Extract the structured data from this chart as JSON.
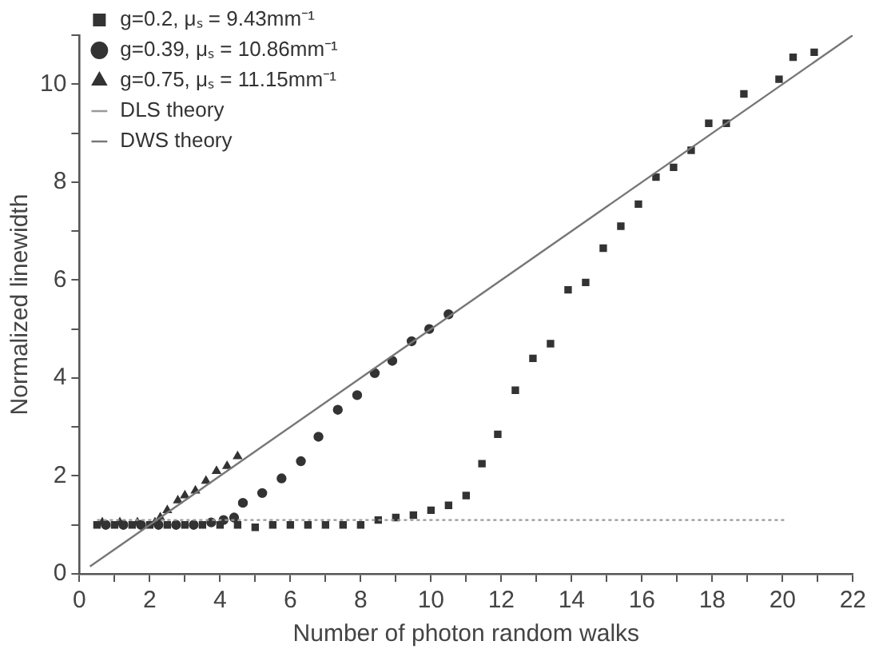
{
  "chart_data": {
    "type": "scatter",
    "xlabel": "Number of photon random walks",
    "ylabel": "Normalized linewidth",
    "xlim": [
      0,
      22
    ],
    "ylim": [
      0,
      11
    ],
    "xticks": [
      0,
      {
        "value": 1,
        "label": null
      },
      2,
      {
        "value": 3,
        "label": null
      },
      4,
      {
        "value": 5,
        "label": null
      },
      6,
      {
        "value": 7,
        "label": null
      },
      8,
      {
        "value": 9,
        "label": null
      },
      10,
      {
        "value": 11,
        "label": null
      },
      12,
      {
        "value": 13,
        "label": null
      },
      14,
      {
        "value": 15,
        "label": null
      },
      16,
      {
        "value": 17,
        "label": null
      },
      18,
      {
        "value": 19,
        "label": null
      },
      20,
      {
        "value": 21,
        "label": null
      },
      22
    ],
    "yticks": [
      0,
      {
        "value": 1,
        "label": null
      },
      2,
      {
        "value": 3,
        "label": null
      },
      4,
      {
        "value": 5,
        "label": null
      },
      6,
      {
        "value": 7,
        "label": null
      },
      8,
      {
        "value": 9,
        "label": null
      },
      10,
      {
        "value": 11,
        "label": null
      }
    ],
    "grid": false,
    "legend": "top left",
    "series": [
      {
        "name": "g=0.2, μₛ = 9.43mm⁻¹",
        "type": "scatter",
        "marker": "square",
        "color": "#333333",
        "x": [
          0.5,
          1,
          1.5,
          2,
          2.5,
          3,
          3.5,
          4,
          4.5,
          5,
          5.5,
          6,
          6.5,
          7,
          7.5,
          8,
          8.5,
          9,
          9.5,
          10,
          10.5,
          11,
          11.45,
          11.9,
          12.4,
          12.9,
          13.4,
          13.9,
          14.4,
          14.9,
          15.4,
          15.9,
          16.4,
          16.9,
          17.4,
          17.9,
          18.4,
          18.9,
          19.9,
          20.3,
          20.9
        ],
        "values": [
          1.0,
          1.0,
          1.0,
          1.0,
          1.0,
          1.0,
          1.0,
          1.0,
          1.0,
          0.95,
          1.0,
          1.0,
          1.0,
          1.0,
          1.0,
          1.0,
          1.1,
          1.15,
          1.2,
          1.3,
          1.4,
          1.6,
          2.25,
          2.85,
          3.75,
          4.4,
          4.7,
          5.8,
          5.95,
          6.65,
          7.1,
          7.55,
          8.1,
          8.3,
          8.65,
          9.2,
          9.2,
          9.8,
          10.1,
          10.55,
          10.65
        ]
      },
      {
        "name": "g=0.39, μₛ = 10.86mm⁻¹",
        "type": "scatter",
        "marker": "circle",
        "color": "#333333",
        "x": [
          0.75,
          1.25,
          1.75,
          2.25,
          2.75,
          3.25,
          3.75,
          4.1,
          4.4,
          4.65,
          5.2,
          5.75,
          6.3,
          6.8,
          7.35,
          7.9,
          8.4,
          8.9,
          9.45,
          9.95,
          10.5
        ],
        "values": [
          1.0,
          1.0,
          1.0,
          1.0,
          1.0,
          1.0,
          1.05,
          1.1,
          1.15,
          1.45,
          1.65,
          1.95,
          2.3,
          2.8,
          3.35,
          3.65,
          4.1,
          4.35,
          4.75,
          5.0,
          5.3
        ]
      },
      {
        "name": "g=0.75, μₛ = 11.15mm⁻¹",
        "type": "scatter",
        "marker": "triangle",
        "color": "#333333",
        "x": [
          0.65,
          1.15,
          1.65,
          2.15,
          2.3,
          2.5,
          2.8,
          3.0,
          3.3,
          3.6,
          3.9,
          4.2,
          4.5
        ],
        "values": [
          1.05,
          1.05,
          1.05,
          1.05,
          1.15,
          1.3,
          1.5,
          1.6,
          1.7,
          1.9,
          2.1,
          2.2,
          2.4
        ]
      },
      {
        "name": "DLS theory",
        "type": "line",
        "marker": "none",
        "line_style": "dotted",
        "color": "#999999",
        "x": [
          0.5,
          20.1
        ],
        "values": [
          1.1,
          1.1
        ]
      },
      {
        "name": "DWS theory",
        "type": "line",
        "marker": "none",
        "line_style": "solid",
        "color": "#777777",
        "x": [
          0.3,
          22
        ],
        "values": [
          0.15,
          11
        ]
      }
    ]
  }
}
